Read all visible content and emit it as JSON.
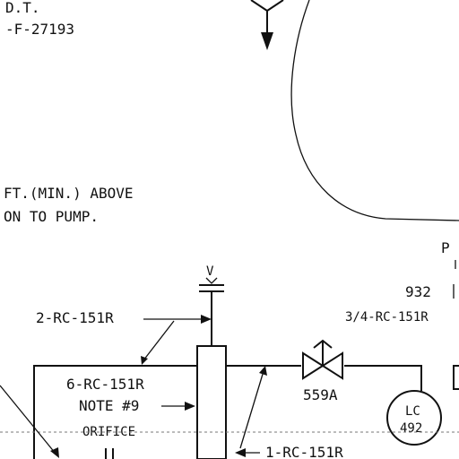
{
  "labels": {
    "top_left_1": "D.T.",
    "top_left_2": "-F-27193",
    "note_1": "FT.(MIN.) ABOVE",
    "note_2": "ON TO PUMP.",
    "vent": "V",
    "line_2rc": "2-RC-151R",
    "line_6rc": "6-RC-151R",
    "note_ref": "NOTE #9",
    "orifice": "ORIFICE",
    "line_1rc": "1-RC-151R",
    "valve_tag": "559A",
    "line_34rc": "3/4-RC-151R",
    "ref_932": "932",
    "ref_p": "P",
    "instrument_type": "LC",
    "instrument_number": "492"
  },
  "colors": {
    "ink": "#111111",
    "background": "#ffffff"
  }
}
